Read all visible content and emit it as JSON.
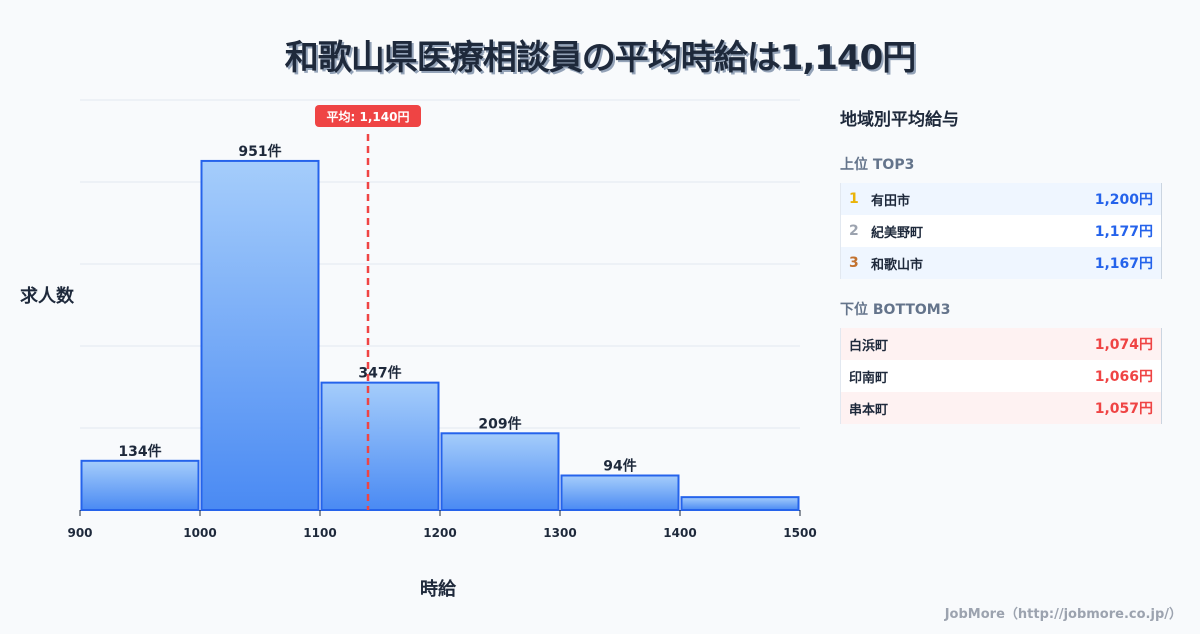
{
  "title": "和歌山県医療相談員の平均時給は1,140円",
  "chart_data": {
    "type": "bar",
    "subtype": "histogram",
    "title": "和歌山県医療相談員の平均時給は1,140円",
    "xlabel": "時給",
    "ylabel": "求人数",
    "bin_edges": [
      900,
      1000,
      1100,
      1200,
      1300,
      1400,
      1500
    ],
    "x_ticks": [
      "900",
      "1000",
      "1100",
      "1200",
      "1300",
      "1400",
      "1500"
    ],
    "categories": [
      "900-1000",
      "1000-1100",
      "1100-1200",
      "1200-1300",
      "1300-1400",
      "1400-1500"
    ],
    "values": [
      134,
      951,
      347,
      209,
      94,
      35
    ],
    "labels": [
      "134件",
      "951件",
      "347件",
      "209件",
      "94件",
      ""
    ],
    "xlim": [
      900,
      1500
    ],
    "ylim": [
      0,
      1117
    ],
    "grid": true,
    "mean_line": {
      "value": 1140,
      "label": "平均: 1,140円",
      "color": "#ef4444"
    },
    "colors": {
      "bar_top": "#a5cdfb",
      "bar_bottom": "#4a8af3",
      "bar_border": "#2563eb"
    }
  },
  "panel": {
    "title": "地域別平均給与",
    "top_title": "上位 TOP3",
    "top": [
      {
        "rank": "1",
        "name": "有田市",
        "value": "1,200円",
        "rank_color": "#eab308"
      },
      {
        "rank": "2",
        "name": "紀美野町",
        "value": "1,177円",
        "rank_color": "#9ca3af"
      },
      {
        "rank": "3",
        "name": "和歌山市",
        "value": "1,167円",
        "rank_color": "#c2722f"
      }
    ],
    "bottom_title": "下位 BOTTOM3",
    "bottom": [
      {
        "name": "白浜町",
        "value": "1,074円"
      },
      {
        "name": "印南町",
        "value": "1,066円"
      },
      {
        "name": "串本町",
        "value": "1,057円"
      }
    ]
  },
  "footer": "JobMore（http://jobmore.co.jp/）"
}
